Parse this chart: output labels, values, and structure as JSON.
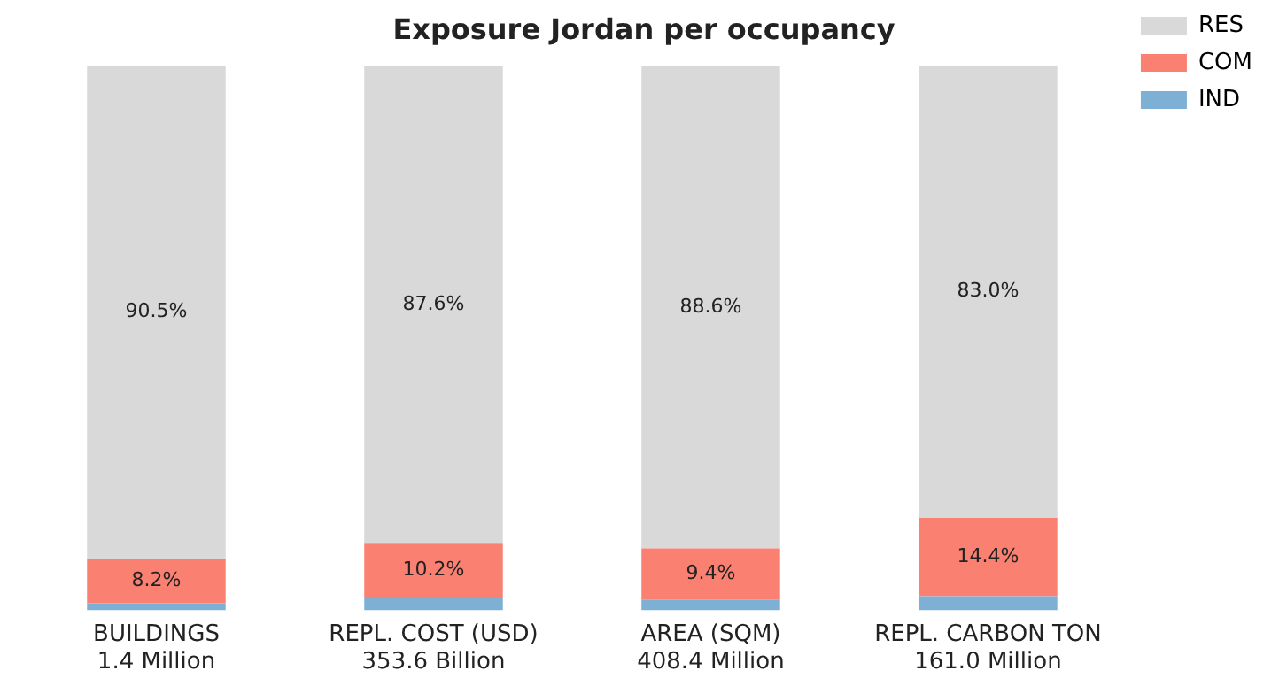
{
  "chart_data": {
    "type": "bar",
    "title": "Exposure Jordan per occupancy",
    "stacked": true,
    "legend": "top right",
    "grid": false,
    "tick_labels": "x",
    "categories": [
      "BUILDINGS\n1.4 Million",
      "REPL. COST (USD)\n353.6 Billion",
      "AREA (SQM)\n408.4 Million",
      "REPL. CARBON TON\n161.0 Million"
    ],
    "series": [
      {
        "name": "IND",
        "color": "#7eb0d5",
        "values": [
          1.3,
          2.2,
          2.0,
          2.6
        ],
        "value_labels": [
          null,
          null,
          null,
          null
        ]
      },
      {
        "name": "COM",
        "color": "#fa8072",
        "values": [
          8.2,
          10.2,
          9.4,
          14.4
        ],
        "value_labels": [
          "8.2%",
          "10.2%",
          "9.4%",
          "14.4%"
        ]
      },
      {
        "name": "RES",
        "color": "#d9d9d9",
        "values": [
          90.5,
          87.6,
          88.6,
          83.0
        ],
        "value_labels": [
          "90.5%",
          "87.6%",
          "88.6%",
          "83.0%"
        ]
      }
    ]
  }
}
